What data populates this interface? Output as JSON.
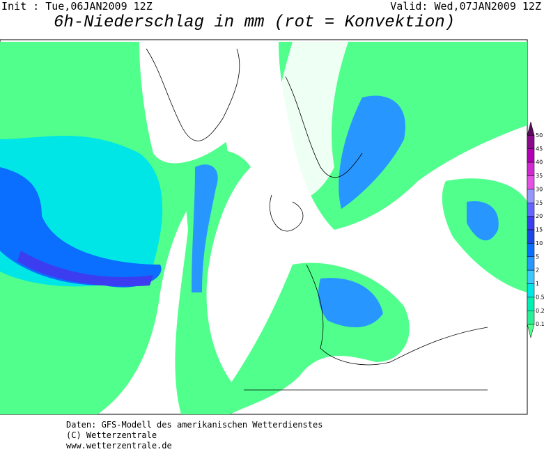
{
  "header": {
    "init": "Init : Tue,06JAN2009 12Z",
    "valid": "Valid: Wed,07JAN2009 12Z",
    "title": "6h-Niederschlag in mm (rot = Konvektion)"
  },
  "legend": {
    "levels": [
      50,
      45,
      40,
      35,
      30,
      25,
      20,
      15,
      10,
      5,
      2,
      1,
      0.5,
      0.2,
      0.1
    ],
    "colors": [
      "#5a0a5a",
      "#8c0a8c",
      "#b400b4",
      "#d228d2",
      "#e650e6",
      "#9696ff",
      "#6464ff",
      "#3c3cf0",
      "#1e46e6",
      "#0a6eff",
      "#2896ff",
      "#3cc8ff",
      "#00e6e6",
      "#00f0b4",
      "#28f096",
      "#50ff8c"
    ]
  },
  "footer": {
    "lines": [
      "Daten: GFS-Modell des amerikanischen Wetterdienstes",
      "(C) Wetterzentrale",
      "www.wetterzentrale.de"
    ]
  }
}
